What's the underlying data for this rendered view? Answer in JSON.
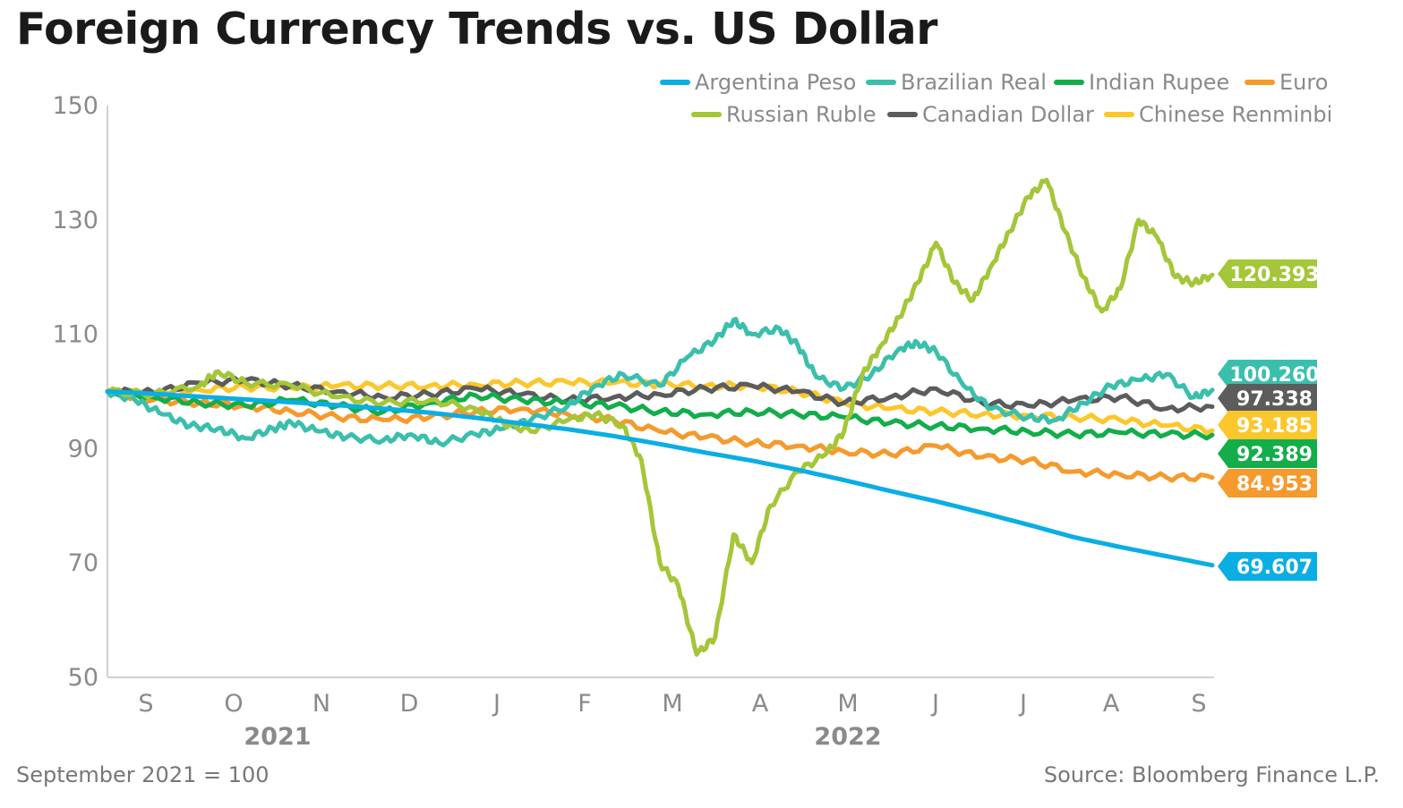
{
  "header": {
    "title": "Foreign Currency Trends vs. US Dollar"
  },
  "footer": {
    "note": "September 2021 = 100",
    "source": "Source: Bloomberg Finance L.P."
  },
  "chart_data": {
    "type": "line",
    "title": "Foreign Currency Trends vs. US Dollar",
    "xlabel": "",
    "ylabel": "",
    "ylim": [
      50,
      150
    ],
    "yticks": [
      50,
      70,
      90,
      110,
      130,
      150
    ],
    "x_tick_labels": [
      "S",
      "O",
      "N",
      "D",
      "J",
      "F",
      "M",
      "A",
      "M",
      "J",
      "J",
      "A",
      "S"
    ],
    "year_labels": [
      {
        "label": "2021",
        "month_index": 1.5
      },
      {
        "label": "2022",
        "month_index": 8
      }
    ],
    "legend_position": "top-right",
    "grid": false,
    "series": [
      {
        "name": "Argentina Peso",
        "color": "#0aaee3",
        "end_value": 69.607,
        "end_label": "69.607",
        "points": [
          [
            0,
            100
          ],
          [
            0.5,
            99.6
          ],
          [
            1,
            99.1
          ],
          [
            1.5,
            98.6
          ],
          [
            2,
            98.1
          ],
          [
            2.5,
            97.6
          ],
          [
            3,
            97
          ],
          [
            3.5,
            96.3
          ],
          [
            4,
            95.4
          ],
          [
            4.5,
            94.4
          ],
          [
            5,
            93.4
          ],
          [
            5.5,
            92.2
          ],
          [
            6,
            90.8
          ],
          [
            6.5,
            89.3
          ],
          [
            7,
            87.9
          ],
          [
            7.5,
            86.3
          ],
          [
            8,
            84.5
          ],
          [
            8.5,
            82.6
          ],
          [
            9,
            80.8
          ],
          [
            9.5,
            78.8
          ],
          [
            10,
            76.7
          ],
          [
            10.5,
            74.5
          ],
          [
            11,
            72.8
          ],
          [
            11.5,
            71.2
          ],
          [
            12,
            69.607
          ]
        ]
      },
      {
        "name": "Brazilian Real",
        "color": "#3bbfad",
        "end_value": 100.26,
        "end_label": "100.260",
        "points": [
          [
            0,
            100
          ],
          [
            0.3,
            98.5
          ],
          [
            0.6,
            96
          ],
          [
            0.9,
            94
          ],
          [
            1.2,
            93.5
          ],
          [
            1.5,
            91.8
          ],
          [
            1.8,
            93.5
          ],
          [
            2,
            94.5
          ],
          [
            2.3,
            93
          ],
          [
            2.6,
            92
          ],
          [
            3,
            91.5
          ],
          [
            3.3,
            92.5
          ],
          [
            3.6,
            91
          ],
          [
            4,
            92.5
          ],
          [
            4.3,
            93.5
          ],
          [
            4.6,
            95
          ],
          [
            5,
            97.5
          ],
          [
            5.3,
            101
          ],
          [
            5.6,
            103
          ],
          [
            6,
            101
          ],
          [
            6.3,
            106
          ],
          [
            6.6,
            109
          ],
          [
            6.8,
            112.5
          ],
          [
            7,
            110
          ],
          [
            7.3,
            111
          ],
          [
            7.5,
            108
          ],
          [
            7.7,
            102.5
          ],
          [
            8,
            100.5
          ],
          [
            8.3,
            103
          ],
          [
            8.6,
            107.5
          ],
          [
            8.8,
            108.5
          ],
          [
            9,
            107
          ],
          [
            9.3,
            101
          ],
          [
            9.6,
            97
          ],
          [
            10,
            95.5
          ],
          [
            10.3,
            95
          ],
          [
            10.6,
            98
          ],
          [
            10.9,
            101
          ],
          [
            11.2,
            102
          ],
          [
            11.5,
            103
          ],
          [
            11.8,
            99
          ],
          [
            12,
            100.26
          ]
        ]
      },
      {
        "name": "Indian Rupee",
        "color": "#13ad4b",
        "end_value": 92.389,
        "end_label": "92.389",
        "points": [
          [
            0,
            100
          ],
          [
            0.5,
            99
          ],
          [
            1,
            98
          ],
          [
            1.5,
            97.5
          ],
          [
            2,
            98.5
          ],
          [
            2.5,
            97.5
          ],
          [
            3,
            96.5
          ],
          [
            3.5,
            98
          ],
          [
            4,
            99.3
          ],
          [
            4.5,
            98.5
          ],
          [
            5,
            98
          ],
          [
            5.5,
            97.5
          ],
          [
            6,
            96.5
          ],
          [
            6.5,
            96
          ],
          [
            7,
            96.5
          ],
          [
            7.5,
            96
          ],
          [
            8,
            95.5
          ],
          [
            8.5,
            94.5
          ],
          [
            9,
            94
          ],
          [
            9.5,
            93.5
          ],
          [
            10,
            93
          ],
          [
            10.5,
            92.5
          ],
          [
            11,
            92.8
          ],
          [
            11.5,
            92.5
          ],
          [
            12,
            92.389
          ]
        ]
      },
      {
        "name": "Euro",
        "color": "#f59a2d",
        "end_value": 84.953,
        "end_label": "84.953",
        "points": [
          [
            0,
            100
          ],
          [
            0.5,
            98.5
          ],
          [
            1,
            98
          ],
          [
            1.5,
            97.5
          ],
          [
            2,
            96.5
          ],
          [
            2.5,
            95.5
          ],
          [
            3,
            95
          ],
          [
            3.5,
            95.5
          ],
          [
            4,
            96.5
          ],
          [
            4.5,
            97
          ],
          [
            5,
            96
          ],
          [
            5.5,
            95
          ],
          [
            6,
            93
          ],
          [
            6.5,
            92
          ],
          [
            7,
            91
          ],
          [
            7.5,
            90.5
          ],
          [
            8,
            89.5
          ],
          [
            8.5,
            89
          ],
          [
            9,
            90.5
          ],
          [
            9.5,
            88.5
          ],
          [
            10,
            88
          ],
          [
            10.5,
            86
          ],
          [
            11,
            85.5
          ],
          [
            11.5,
            85
          ],
          [
            12,
            84.953
          ]
        ]
      },
      {
        "name": "Russian Ruble",
        "color": "#a4c639",
        "end_value": 120.393,
        "end_label": "120.393",
        "points": [
          [
            0,
            100
          ],
          [
            0.5,
            99.5
          ],
          [
            1,
            101
          ],
          [
            1.2,
            103.5
          ],
          [
            1.5,
            101.5
          ],
          [
            2,
            101
          ],
          [
            2.5,
            99
          ],
          [
            3,
            98
          ],
          [
            3.5,
            98.5
          ],
          [
            4,
            97
          ],
          [
            4.3,
            94.5
          ],
          [
            4.6,
            93
          ],
          [
            5,
            95
          ],
          [
            5.3,
            96
          ],
          [
            5.6,
            94
          ],
          [
            5.8,
            88
          ],
          [
            6,
            70
          ],
          [
            6.2,
            66
          ],
          [
            6.4,
            54
          ],
          [
            6.6,
            57
          ],
          [
            6.8,
            75
          ],
          [
            7,
            70
          ],
          [
            7.2,
            80
          ],
          [
            7.5,
            86
          ],
          [
            7.8,
            89
          ],
          [
            8,
            93
          ],
          [
            8.2,
            103
          ],
          [
            8.4,
            108
          ],
          [
            8.6,
            113
          ],
          [
            8.8,
            119
          ],
          [
            9,
            126
          ],
          [
            9.2,
            119
          ],
          [
            9.4,
            116
          ],
          [
            9.6,
            122
          ],
          [
            9.8,
            128
          ],
          [
            10,
            134
          ],
          [
            10.2,
            137
          ],
          [
            10.4,
            128
          ],
          [
            10.6,
            120
          ],
          [
            10.8,
            114
          ],
          [
            11,
            118
          ],
          [
            11.2,
            130
          ],
          [
            11.4,
            127
          ],
          [
            11.6,
            120
          ],
          [
            11.8,
            119
          ],
          [
            12,
            120.393
          ]
        ]
      },
      {
        "name": "Canadian Dollar",
        "color": "#5c5c5c",
        "end_value": 97.338,
        "end_label": "97.338",
        "points": [
          [
            0,
            100
          ],
          [
            0.5,
            99.8
          ],
          [
            1,
            101.5
          ],
          [
            1.5,
            102
          ],
          [
            2,
            101
          ],
          [
            2.5,
            100
          ],
          [
            3,
            99
          ],
          [
            3.5,
            99.5
          ],
          [
            4,
            100.5
          ],
          [
            4.5,
            99.5
          ],
          [
            5,
            98.5
          ],
          [
            5.5,
            99
          ],
          [
            6,
            99.5
          ],
          [
            6.5,
            100.5
          ],
          [
            7,
            101
          ],
          [
            7.5,
            100
          ],
          [
            8,
            98
          ],
          [
            8.5,
            99
          ],
          [
            9,
            100.5
          ],
          [
            9.5,
            98
          ],
          [
            10,
            97.5
          ],
          [
            10.5,
            98.5
          ],
          [
            11,
            99
          ],
          [
            11.5,
            97
          ],
          [
            12,
            97.338
          ]
        ]
      },
      {
        "name": "Chinese Renminbi",
        "color": "#fcc72c",
        "end_value": 93.185,
        "end_label": "93.185",
        "points": [
          [
            0,
            100
          ],
          [
            0.5,
            99.7
          ],
          [
            1,
            100.3
          ],
          [
            1.5,
            100.8
          ],
          [
            2,
            100.6
          ],
          [
            2.5,
            101
          ],
          [
            3,
            101
          ],
          [
            3.5,
            101
          ],
          [
            4,
            101.2
          ],
          [
            4.5,
            101.5
          ],
          [
            5,
            101.6
          ],
          [
            5.5,
            101.5
          ],
          [
            6,
            101.3
          ],
          [
            6.5,
            101
          ],
          [
            7,
            101
          ],
          [
            7.5,
            100
          ],
          [
            8,
            98
          ],
          [
            8.5,
            97
          ],
          [
            9,
            96.5
          ],
          [
            9.5,
            96
          ],
          [
            10,
            95.8
          ],
          [
            10.5,
            95.5
          ],
          [
            11,
            95
          ],
          [
            11.5,
            94
          ],
          [
            12,
            93.185
          ]
        ]
      }
    ]
  }
}
